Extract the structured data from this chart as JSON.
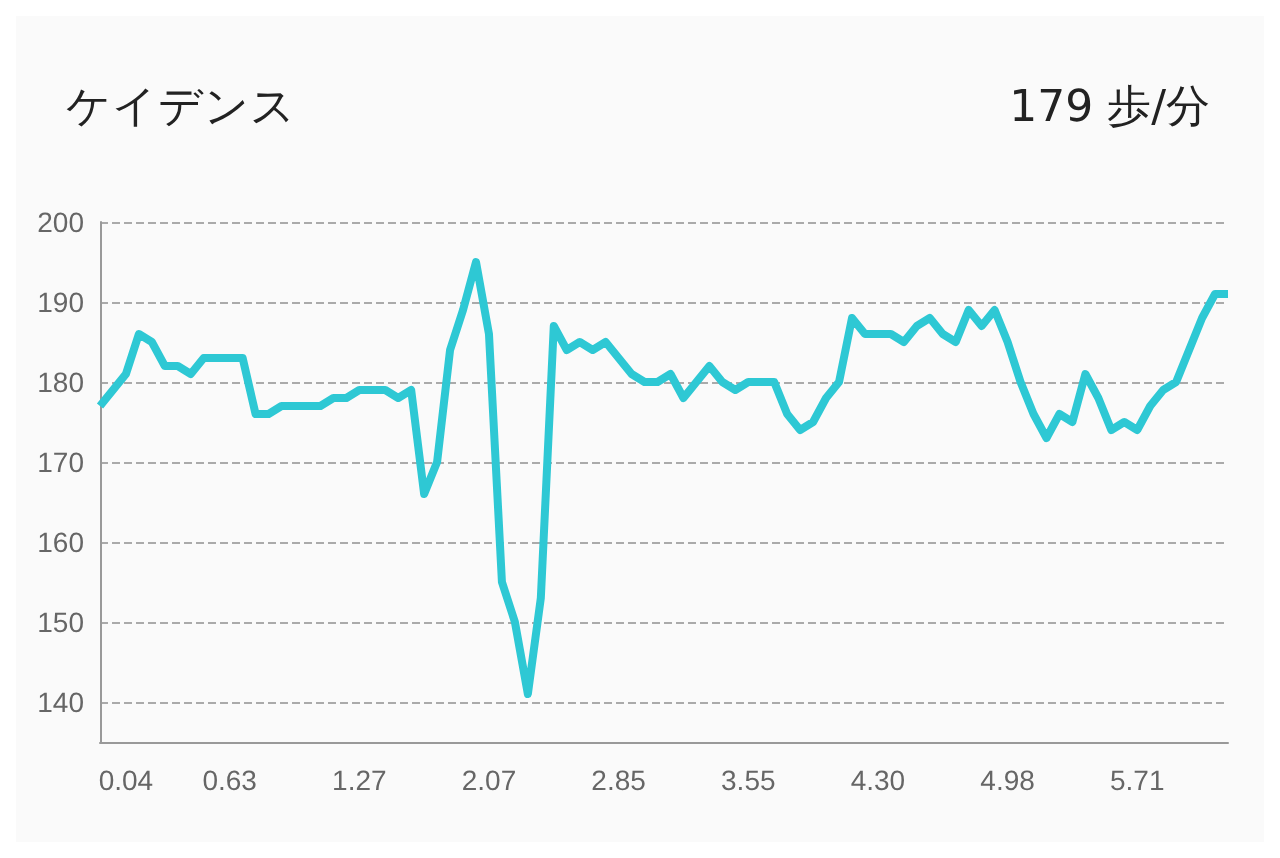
{
  "chart_data": {
    "type": "line",
    "title": "ケイデンス",
    "subtitle": "179 歩/分",
    "categories": [
      null,
      null,
      "0.04",
      null,
      null,
      null,
      null,
      null,
      null,
      null,
      "0.63",
      null,
      null,
      null,
      null,
      null,
      null,
      null,
      null,
      null,
      "1.27",
      null,
      null,
      null,
      null,
      null,
      null,
      null,
      null,
      null,
      "2.07",
      null,
      null,
      null,
      null,
      null,
      null,
      null,
      null,
      null,
      "2.85",
      null,
      null,
      null,
      null,
      null,
      null,
      null,
      null,
      null,
      "3.55",
      null,
      null,
      null,
      null,
      null,
      null,
      null,
      null,
      null,
      "4.30",
      null,
      null,
      null,
      null,
      null,
      null,
      null,
      null,
      null,
      "4.98",
      null,
      null,
      null,
      null,
      null,
      null,
      null,
      null,
      null,
      "5.71",
      null,
      null,
      null,
      null,
      null,
      null,
      null
    ],
    "series": [
      {
        "color": "#2ec8d4",
        "values": [
          177,
          179,
          181,
          186,
          185,
          182,
          182,
          181,
          183,
          183,
          183,
          183,
          176,
          176,
          177,
          177,
          177,
          177,
          178,
          178,
          179,
          179,
          179,
          178,
          179,
          166,
          170,
          184,
          189,
          195,
          186,
          155,
          150,
          141,
          153,
          187,
          184,
          185,
          184,
          185,
          183,
          181,
          180,
          180,
          181,
          178,
          180,
          182,
          180,
          179,
          180,
          180,
          180,
          176,
          174,
          175,
          178,
          180,
          188,
          186,
          186,
          186,
          185,
          187,
          188,
          186,
          185,
          189,
          187,
          189,
          185,
          180,
          176,
          173,
          176,
          175,
          181,
          178,
          174,
          175,
          174,
          177,
          179,
          180,
          184,
          188,
          191,
          191
        ]
      }
    ],
    "ylim": [
      135,
      200
    ],
    "yticks": [
      140,
      150,
      160,
      170,
      180,
      190,
      200
    ],
    "grid": "y",
    "marker": "none",
    "line_style": "solid"
  }
}
